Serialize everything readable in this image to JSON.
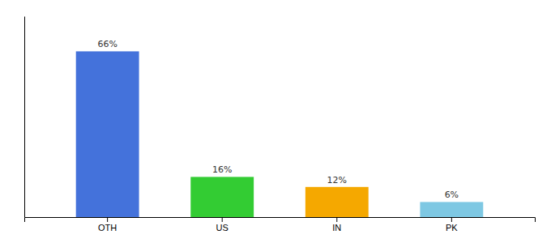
{
  "chart_data": {
    "type": "bar",
    "categories": [
      "OTH",
      "US",
      "IN",
      "PK"
    ],
    "values": [
      66,
      16,
      12,
      6
    ],
    "value_labels": [
      "66%",
      "16%",
      "12%",
      "6%"
    ],
    "colors": [
      "#4472db",
      "#33cc33",
      "#f5a800",
      "#7ec8e3"
    ],
    "ylim": [
      0,
      80
    ],
    "data_labels": true,
    "tick_labels": "x"
  }
}
